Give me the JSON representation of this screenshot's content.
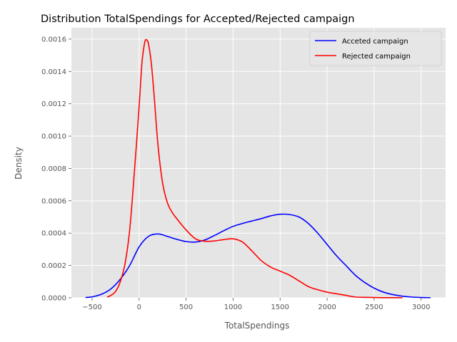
{
  "chart_data": {
    "type": "line",
    "title": "Distribution TotalSpendings for Accepted/Rejected campaign",
    "xlabel": "TotalSpendings",
    "ylabel": "Density",
    "xlim": [
      -720,
      3260
    ],
    "ylim": [
      0,
      0.00167
    ],
    "xticks": [
      -500,
      0,
      500,
      1000,
      1500,
      2000,
      2500,
      3000
    ],
    "xtick_labels": [
      "−500",
      "0",
      "500",
      "1000",
      "1500",
      "2000",
      "2500",
      "3000"
    ],
    "yticks": [
      0,
      0.0002,
      0.0004,
      0.0006,
      0.0008,
      0.001,
      0.0012,
      0.0014,
      0.0016
    ],
    "ytick_labels": [
      "0.0000",
      "0.0002",
      "0.0004",
      "0.0006",
      "0.0008",
      "0.0010",
      "0.0012",
      "0.0014",
      "0.0016"
    ],
    "grid": true,
    "legend_position": "top-right",
    "colors": {
      "background": "#e5e5e5",
      "grid": "#ffffff"
    },
    "series": [
      {
        "name": "Acceted campaign",
        "color": "#0000ff",
        "x": [
          -570,
          -500,
          -400,
          -300,
          -200,
          -100,
          0,
          100,
          200,
          300,
          400,
          500,
          600,
          700,
          800,
          900,
          1000,
          1100,
          1200,
          1300,
          1400,
          1500,
          1600,
          1700,
          1800,
          1900,
          2000,
          2100,
          2200,
          2300,
          2400,
          2500,
          2600,
          2700,
          2800,
          2900,
          3000,
          3100
        ],
        "y": [
          2e-06,
          6e-06,
          2.2e-05,
          5.5e-05,
          0.000115,
          0.0002,
          0.000315,
          0.00038,
          0.000395,
          0.00038,
          0.000362,
          0.000348,
          0.000345,
          0.000358,
          0.000385,
          0.000415,
          0.000442,
          0.00046,
          0.000475,
          0.00049,
          0.000507,
          0.000517,
          0.000515,
          0.0005,
          0.00046,
          0.0004,
          0.00033,
          0.00026,
          0.0002,
          0.00014,
          9.5e-05,
          6e-05,
          3.5e-05,
          2e-05,
          1e-05,
          5e-06,
          2e-06,
          1e-06
        ]
      },
      {
        "name": "Rejected campaign",
        "color": "#ff0000",
        "x": [
          -340,
          -300,
          -250,
          -200,
          -150,
          -100,
          -50,
          0,
          30,
          60,
          80,
          100,
          130,
          160,
          200,
          250,
          300,
          350,
          400,
          500,
          600,
          700,
          800,
          900,
          1000,
          1100,
          1200,
          1300,
          1400,
          1500,
          1600,
          1700,
          1800,
          1900,
          2000,
          2100,
          2200,
          2300,
          2400,
          2500,
          2600,
          2700,
          2800
        ],
        "y": [
          5e-06,
          1.5e-05,
          4e-05,
          0.0001,
          0.00021,
          0.00042,
          0.00078,
          0.00118,
          0.00145,
          0.00158,
          0.001595,
          0.00157,
          0.00145,
          0.00125,
          0.00095,
          0.00071,
          0.00059,
          0.00053,
          0.00049,
          0.00042,
          0.000365,
          0.00035,
          0.000352,
          0.00036,
          0.000365,
          0.000345,
          0.00029,
          0.00023,
          0.00019,
          0.000165,
          0.00014,
          0.000105,
          7e-05,
          5e-05,
          3.5e-05,
          2.5e-05,
          1.5e-05,
          5e-06,
          3e-06,
          2e-06,
          1e-06,
          1e-06,
          0.0
        ]
      }
    ]
  }
}
